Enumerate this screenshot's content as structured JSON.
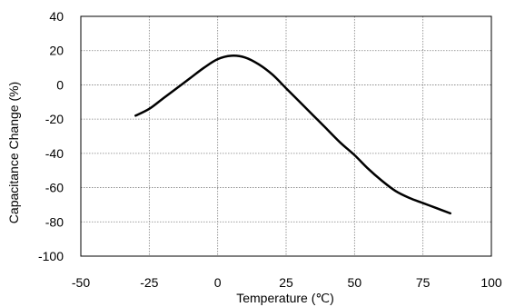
{
  "chart_data": {
    "type": "line",
    "title": "",
    "xlabel": "Temperature (℃)",
    "ylabel": "Capacitance Change (%)",
    "xlim": [
      -50,
      100
    ],
    "ylim": [
      -100,
      40
    ],
    "x_ticks": [
      "-50",
      "-25",
      "0",
      "25",
      "50",
      "75",
      "100"
    ],
    "y_ticks": [
      "40",
      "20",
      "0",
      "-20",
      "-40",
      "-60",
      "-80",
      "-100"
    ],
    "grid": true,
    "legend": "none",
    "colors": {
      "line": "#000000",
      "grid": "#808080",
      "frame": "#000000"
    },
    "series": [
      {
        "x": [
          -30,
          -25,
          -20,
          -15,
          -10,
          -5,
          0,
          5,
          10,
          15,
          20,
          25,
          30,
          35,
          40,
          45,
          50,
          55,
          60,
          65,
          70,
          75,
          80,
          85
        ],
        "values": [
          -18,
          -14,
          -8,
          -2,
          4,
          10,
          15,
          17,
          16,
          12,
          6,
          -2,
          -10,
          -18,
          -26,
          -34,
          -41,
          -49,
          -56,
          -62,
          -66,
          -69,
          -72,
          -75
        ]
      }
    ]
  }
}
